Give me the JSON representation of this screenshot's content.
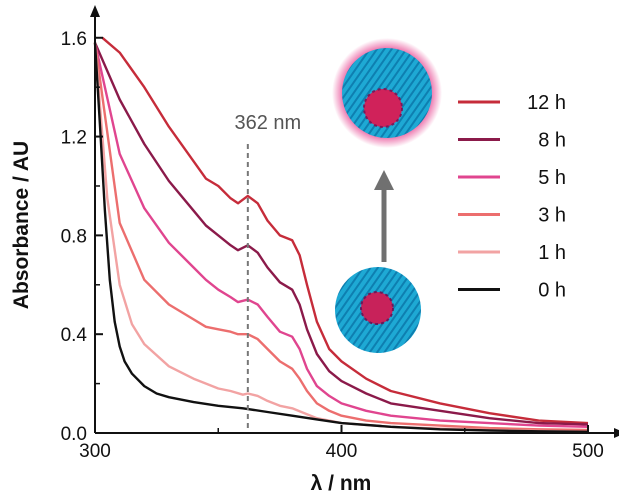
{
  "chart_data": {
    "type": "line",
    "xlabel": "λ / nm",
    "ylabel": "Absorbance / AU",
    "xlim": [
      300,
      500
    ],
    "ylim": [
      0,
      1.68
    ],
    "xticks": [
      "300",
      "400",
      "500"
    ],
    "yticks": [
      "0.0",
      "0.4",
      "0.8",
      "1.2",
      "1.6"
    ],
    "grid": false,
    "legend_position": "right",
    "annotation": {
      "label": "362 nm",
      "x": 362
    },
    "series": [
      {
        "name": "12 h",
        "color": "#c62c3a",
        "x": [
          303,
          310,
          320,
          330,
          340,
          345,
          350,
          355,
          358,
          362,
          366,
          370,
          375,
          380,
          383,
          386,
          390,
          395,
          400,
          410,
          420,
          440,
          460,
          480,
          500
        ],
        "y": [
          1.6,
          1.54,
          1.4,
          1.24,
          1.1,
          1.03,
          1.0,
          0.95,
          0.93,
          0.96,
          0.93,
          0.86,
          0.8,
          0.78,
          0.72,
          0.6,
          0.45,
          0.34,
          0.29,
          0.22,
          0.17,
          0.12,
          0.08,
          0.05,
          0.04
        ]
      },
      {
        "name": "8 h",
        "color": "#8b1a4a",
        "x": [
          300,
          310,
          320,
          330,
          340,
          345,
          350,
          355,
          358,
          362,
          366,
          370,
          375,
          380,
          383,
          386,
          390,
          395,
          400,
          410,
          420,
          440,
          460,
          480,
          500
        ],
        "y": [
          1.58,
          1.35,
          1.17,
          1.02,
          0.9,
          0.84,
          0.8,
          0.76,
          0.74,
          0.76,
          0.73,
          0.67,
          0.61,
          0.58,
          0.52,
          0.42,
          0.32,
          0.25,
          0.21,
          0.16,
          0.12,
          0.09,
          0.06,
          0.04,
          0.035
        ]
      },
      {
        "name": "5 h",
        "color": "#e0458f",
        "x": [
          300,
          310,
          320,
          330,
          340,
          345,
          350,
          355,
          358,
          362,
          366,
          370,
          375,
          380,
          383,
          386,
          390,
          395,
          400,
          410,
          420,
          440,
          460,
          480,
          500
        ],
        "y": [
          1.58,
          1.13,
          0.91,
          0.77,
          0.67,
          0.62,
          0.58,
          0.55,
          0.53,
          0.54,
          0.52,
          0.47,
          0.41,
          0.39,
          0.34,
          0.26,
          0.19,
          0.15,
          0.12,
          0.09,
          0.07,
          0.05,
          0.04,
          0.03,
          0.025
        ]
      },
      {
        "name": "3 h",
        "color": "#ec6e6e",
        "x": [
          300,
          310,
          320,
          330,
          340,
          345,
          350,
          355,
          358,
          362,
          366,
          370,
          375,
          380,
          383,
          386,
          390,
          395,
          400,
          410,
          420,
          440,
          460,
          480,
          500
        ],
        "y": [
          1.58,
          0.85,
          0.62,
          0.52,
          0.46,
          0.43,
          0.42,
          0.41,
          0.4,
          0.4,
          0.38,
          0.34,
          0.29,
          0.26,
          0.22,
          0.17,
          0.12,
          0.09,
          0.07,
          0.05,
          0.04,
          0.03,
          0.02,
          0.015,
          0.012
        ]
      },
      {
        "name": "1 h",
        "color": "#f2a3a3",
        "x": [
          300,
          305,
          310,
          315,
          320,
          330,
          340,
          350,
          355,
          360,
          362,
          366,
          370,
          375,
          380,
          385,
          390,
          400,
          420,
          440,
          460,
          480,
          500
        ],
        "y": [
          1.58,
          0.95,
          0.6,
          0.44,
          0.36,
          0.27,
          0.22,
          0.18,
          0.17,
          0.155,
          0.16,
          0.15,
          0.13,
          0.11,
          0.1,
          0.08,
          0.06,
          0.04,
          0.025,
          0.018,
          0.012,
          0.008,
          0.005
        ]
      },
      {
        "name": "0 h",
        "color": "#111111",
        "x": [
          300,
          302,
          304,
          306,
          308,
          310,
          312,
          315,
          320,
          325,
          330,
          340,
          350,
          360,
          370,
          380,
          390,
          400,
          420,
          440,
          460,
          480,
          500
        ],
        "y": [
          1.58,
          1.25,
          0.9,
          0.62,
          0.45,
          0.35,
          0.29,
          0.24,
          0.19,
          0.16,
          0.145,
          0.125,
          0.11,
          0.1,
          0.085,
          0.07,
          0.055,
          0.04,
          0.025,
          0.015,
          0.01,
          0.007,
          0.005
        ]
      }
    ]
  },
  "inset": {
    "description_icons": [
      "micelle-loaded-icon",
      "micelle-initial-icon"
    ],
    "shell_color": "#1ea9d4",
    "core_color": "#d0225a",
    "glow_color": "#e63d8c"
  }
}
